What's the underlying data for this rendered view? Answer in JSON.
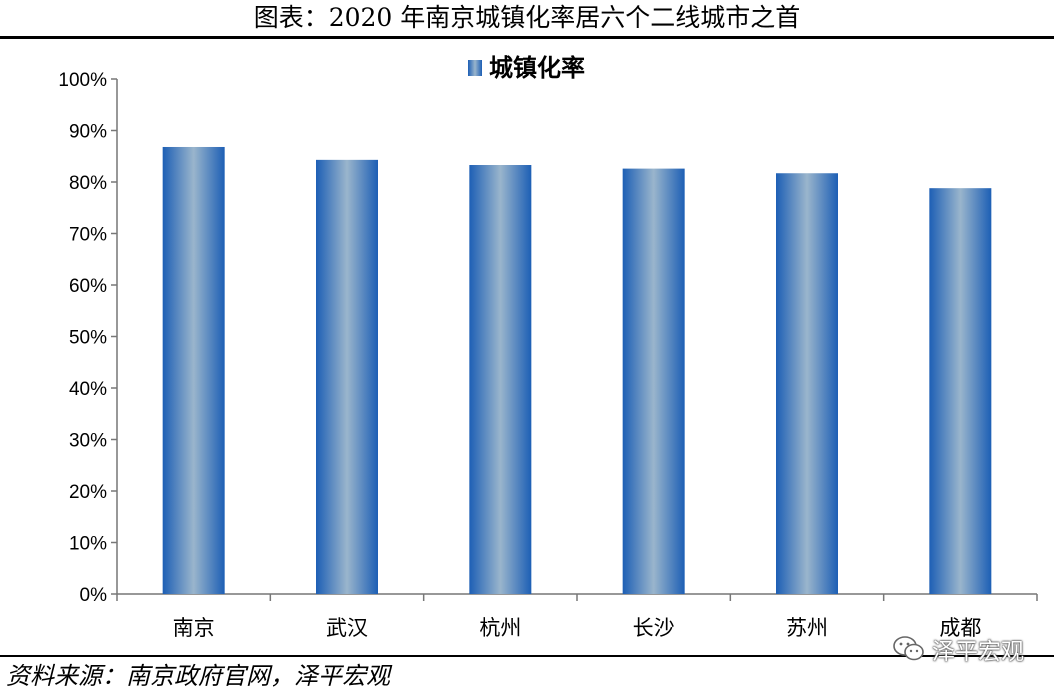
{
  "title": "图表：2020 年南京城镇化率居六个二线城市之首",
  "source": "资料来源：南京政府官网，泽平宏观",
  "watermark": "泽平宏观",
  "chart_data": {
    "type": "bar",
    "title": "",
    "xlabel": "",
    "ylabel": "",
    "categories": [
      "南京",
      "武汉",
      "杭州",
      "长沙",
      "苏州",
      "成都"
    ],
    "series": [
      {
        "name": "城镇化率",
        "values": [
          86.8,
          84.3,
          83.3,
          82.6,
          81.7,
          78.8
        ],
        "color": "#3f7fc7"
      }
    ],
    "ylim": [
      0,
      100
    ],
    "yticks": [
      "0%",
      "10%",
      "20%",
      "30%",
      "40%",
      "50%",
      "60%",
      "70%",
      "80%",
      "90%",
      "100%"
    ],
    "grid": false,
    "legend": "top-center"
  }
}
